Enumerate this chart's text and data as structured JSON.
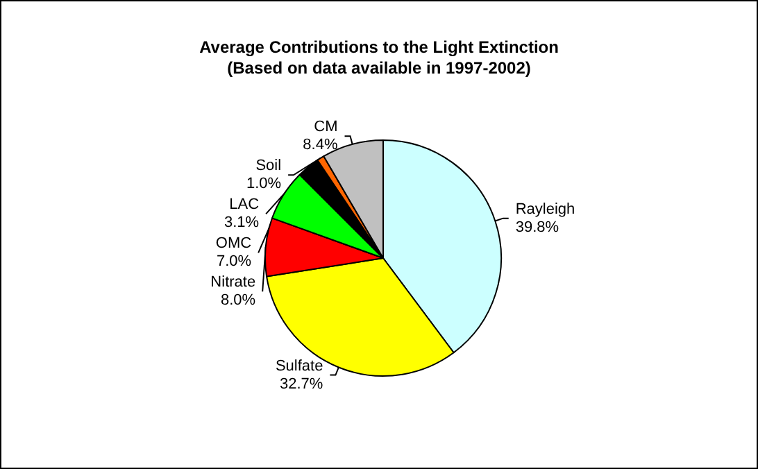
{
  "chart_data": {
    "type": "pie",
    "title": "Average Contributions to the Light Extinction",
    "subtitle": "(Based on data available in 1997-2002)",
    "categories": [
      "Rayleigh",
      "Sulfate",
      "Nitrate",
      "OMC",
      "LAC",
      "Soil",
      "CM"
    ],
    "values": [
      39.8,
      32.7,
      8.0,
      7.0,
      3.1,
      1.0,
      8.4
    ],
    "value_labels": [
      "39.8%",
      "32.7%",
      "8.0%",
      "7.0%",
      "3.1%",
      "1.0%",
      "8.4%"
    ],
    "colors": [
      "#ccffff",
      "#ffff00",
      "#ff0000",
      "#00ff00",
      "#000000",
      "#ff6600",
      "#c0c0c0"
    ],
    "legend": false
  }
}
